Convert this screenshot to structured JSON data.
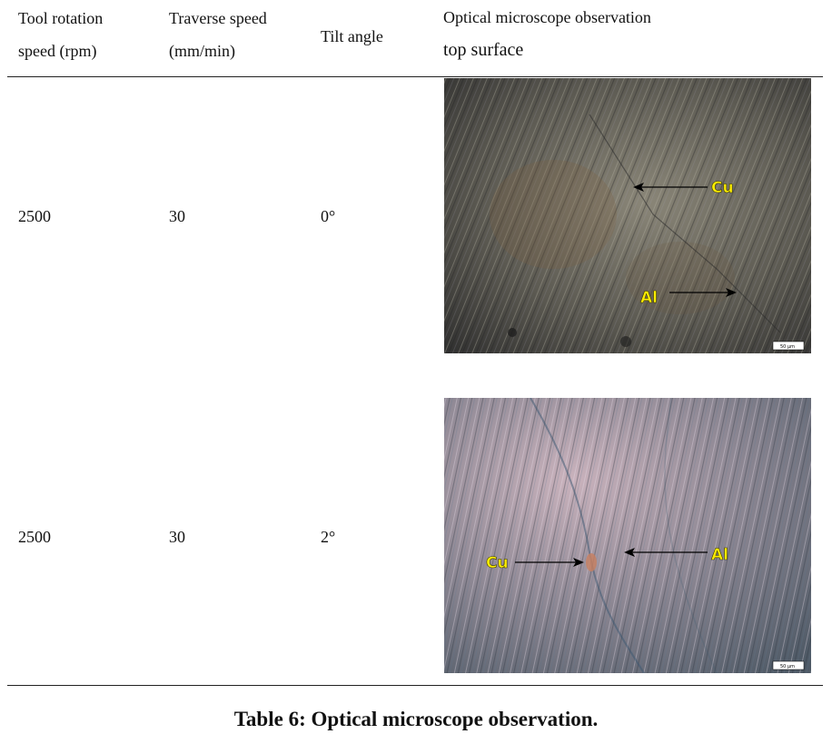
{
  "table": {
    "headers": {
      "rotation": [
        "Tool rotation",
        "speed (rpm)"
      ],
      "traverse": [
        "Traverse speed",
        "(mm/min)"
      ],
      "tilt": "Tilt angle",
      "observation": [
        "Optical microscope observation",
        "top surface"
      ]
    },
    "rows": [
      {
        "rotation": "2500",
        "traverse": "30",
        "tilt": "0°",
        "labels": {
          "cu": "Cu",
          "al": "Al"
        },
        "scale": "50 µm"
      },
      {
        "rotation": "2500",
        "traverse": "30",
        "tilt": "2°",
        "labels": {
          "cu": "Cu",
          "al": "Al"
        },
        "scale": "50 µm"
      }
    ]
  },
  "caption": "Table 6: Optical microscope observation."
}
